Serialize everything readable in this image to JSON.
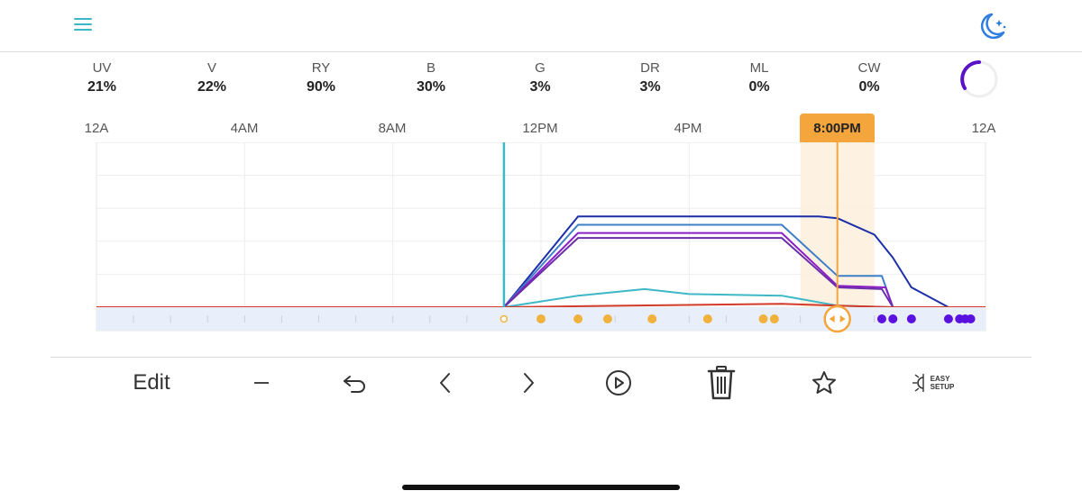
{
  "header": {
    "menu_icon": "hamburger-menu-icon",
    "mode_icon": "moon-stars-icon"
  },
  "channels": [
    {
      "name": "UV",
      "value": "21%"
    },
    {
      "name": "V",
      "value": "22%"
    },
    {
      "name": "RY",
      "value": "90%"
    },
    {
      "name": "B",
      "value": "30%"
    },
    {
      "name": "G",
      "value": "3%"
    },
    {
      "name": "DR",
      "value": "3%"
    },
    {
      "name": "ML",
      "value": "0%"
    },
    {
      "name": "CW",
      "value": "0%"
    }
  ],
  "time_axis": [
    "12A",
    "4AM",
    "8AM",
    "12PM",
    "4PM",
    "12A"
  ],
  "selected_time": "8:00PM",
  "colors": {
    "accent": "#f4a53c",
    "teal": "#3db8c6",
    "navy": "#1c2fa8",
    "steel": "#3f7fc8",
    "violet": "#8b1fc7",
    "purple": "#6a2fa8",
    "red": "#d23a2a",
    "point": "#f0b13d",
    "point_alt": "#5a12e0"
  },
  "chart_data": {
    "type": "line",
    "x_unit": "hours",
    "xlim": [
      0,
      24
    ],
    "ylim": [
      0,
      100
    ],
    "grid": true,
    "current_time_hour": 11.0,
    "selected_hour": 20.0,
    "series": [
      {
        "color": "#1c2fa8",
        "points": [
          [
            0,
            0
          ],
          [
            11,
            0
          ],
          [
            13,
            55
          ],
          [
            19.5,
            55
          ],
          [
            20,
            54
          ],
          [
            21,
            44
          ],
          [
            21.5,
            30
          ],
          [
            22,
            12
          ],
          [
            23,
            0
          ],
          [
            24,
            0
          ]
        ]
      },
      {
        "color": "#3f7fc8",
        "points": [
          [
            0,
            0
          ],
          [
            11,
            0
          ],
          [
            13,
            50
          ],
          [
            18.5,
            50
          ],
          [
            20,
            19
          ],
          [
            21.2,
            19
          ],
          [
            21.5,
            0
          ],
          [
            24,
            0
          ]
        ]
      },
      {
        "color": "#8b1fc7",
        "points": [
          [
            0,
            0
          ],
          [
            11,
            0
          ],
          [
            13,
            45
          ],
          [
            18.5,
            45
          ],
          [
            20,
            13
          ],
          [
            21.3,
            12
          ],
          [
            21.5,
            0
          ],
          [
            24,
            0
          ]
        ]
      },
      {
        "color": "#6a2fa8",
        "points": [
          [
            0,
            0
          ],
          [
            11,
            0
          ],
          [
            13,
            42
          ],
          [
            18.5,
            42
          ],
          [
            20,
            12
          ],
          [
            21.2,
            11
          ],
          [
            21.5,
            0
          ],
          [
            24,
            0
          ]
        ]
      },
      {
        "color": "#3db8c6",
        "points": [
          [
            0,
            0
          ],
          [
            11,
            0
          ],
          [
            13,
            7
          ],
          [
            14.8,
            11
          ],
          [
            16,
            8
          ],
          [
            18.5,
            7
          ],
          [
            20,
            1
          ],
          [
            21.5,
            0
          ],
          [
            24,
            0
          ]
        ]
      },
      {
        "color": "#d23a2a",
        "points": [
          [
            0,
            0
          ],
          [
            11,
            0
          ],
          [
            14.3,
            1
          ],
          [
            18.5,
            2
          ],
          [
            20,
            1
          ],
          [
            21.5,
            0
          ],
          [
            24,
            0
          ]
        ]
      }
    ],
    "control_points": [
      {
        "hour": 11.0,
        "kind": "current"
      },
      {
        "hour": 12.0,
        "kind": "day"
      },
      {
        "hour": 13.0,
        "kind": "day"
      },
      {
        "hour": 13.8,
        "kind": "day"
      },
      {
        "hour": 15.0,
        "kind": "day"
      },
      {
        "hour": 16.5,
        "kind": "day"
      },
      {
        "hour": 18.0,
        "kind": "day"
      },
      {
        "hour": 18.3,
        "kind": "day"
      },
      {
        "hour": 21.2,
        "kind": "night"
      },
      {
        "hour": 21.5,
        "kind": "night"
      },
      {
        "hour": 22.0,
        "kind": "night"
      },
      {
        "hour": 23.0,
        "kind": "night"
      },
      {
        "hour": 23.3,
        "kind": "night"
      },
      {
        "hour": 23.45,
        "kind": "night"
      },
      {
        "hour": 23.6,
        "kind": "night"
      }
    ]
  },
  "toolbar": {
    "edit_label": "Edit",
    "easy_setup_line1": "EASY",
    "easy_setup_line2": "SETUP"
  }
}
